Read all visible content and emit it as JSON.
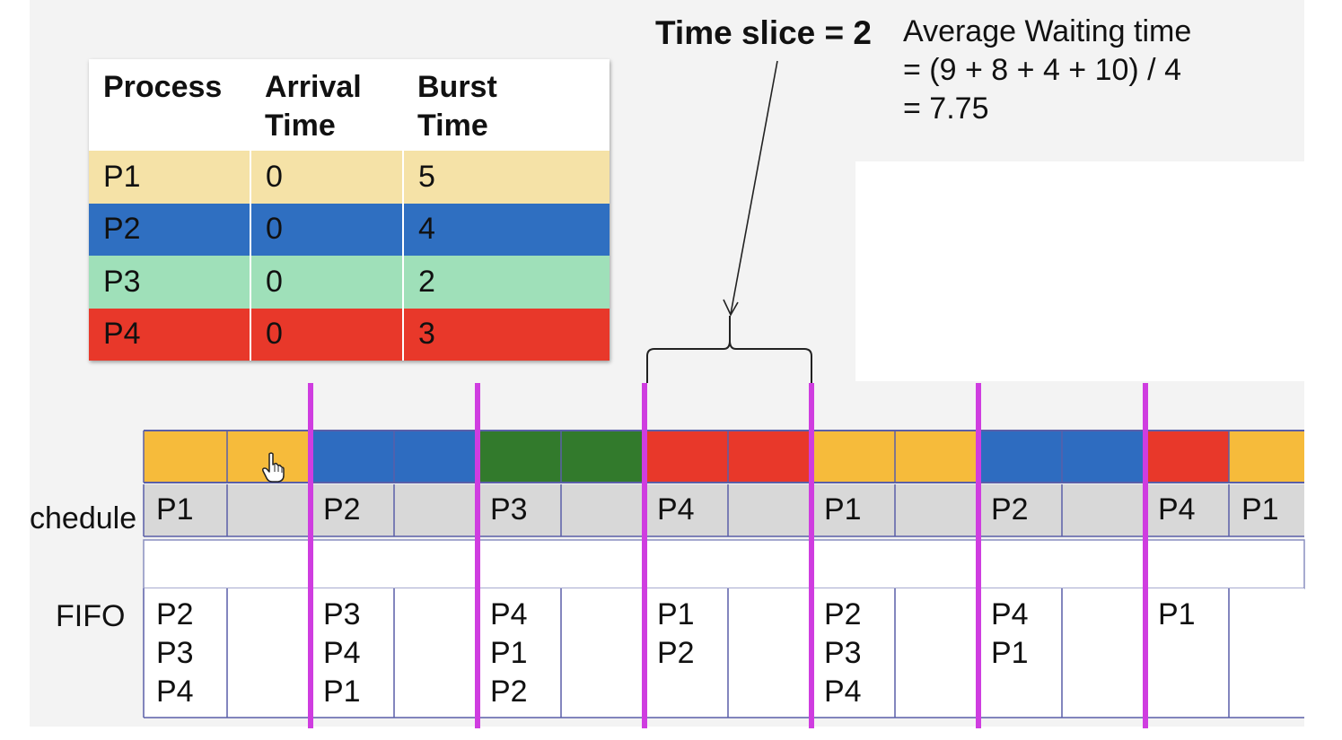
{
  "process_table": {
    "headers": [
      {
        "line1": "Process",
        "line2": ""
      },
      {
        "line1": "Arrival",
        "line2": "Time"
      },
      {
        "line1": "Burst",
        "line2": "Time"
      }
    ],
    "rows": [
      {
        "process": "P1",
        "arrival": "0",
        "burst": "5",
        "color": "#f5e2a7"
      },
      {
        "process": "P2",
        "arrival": "0",
        "burst": "4",
        "color": "#2f6fc1"
      },
      {
        "process": "P3",
        "arrival": "0",
        "burst": "2",
        "color": "#9fe0b9"
      },
      {
        "process": "P4",
        "arrival": "0",
        "burst": "3",
        "color": "#e8382a"
      }
    ]
  },
  "time_slice_label": "Time slice = 2",
  "average_waiting": {
    "line1": "Average Waiting time",
    "line2": "= (9 + 8 + 4 + 10) / 4",
    "line3": "= 7.75"
  },
  "timeline": {
    "schedule_label": "chedule",
    "fifo_label": "FIFO",
    "colors": {
      "P1": "#f6bb3b",
      "P2": "#2e6cc0",
      "P3": "#327a2c",
      "P4": "#e8382a",
      "schedule_row": "#d8d8d8",
      "divider": "#cf3de0",
      "grid": "#5a5fa8"
    },
    "units": [
      "P1",
      "P1",
      "P2",
      "P2",
      "P3",
      "P3",
      "P4",
      "P4",
      "P1",
      "P1",
      "P2",
      "P2",
      "P4",
      "P1"
    ],
    "schedule": [
      {
        "label": "P1",
        "units": 2
      },
      {
        "label": "P2",
        "units": 2
      },
      {
        "label": "P3",
        "units": 2
      },
      {
        "label": "P4",
        "units": 2
      },
      {
        "label": "P1",
        "units": 2
      },
      {
        "label": "P2",
        "units": 2
      },
      {
        "label": "P4",
        "units": 1
      },
      {
        "label": "P1",
        "units": 1
      }
    ],
    "fifo": [
      [
        "P2",
        "P3",
        "P4"
      ],
      [
        "P3",
        "P4",
        "P1"
      ],
      [
        "P4",
        "P1",
        "P2"
      ],
      [
        "P1",
        "P2"
      ],
      [
        "P2",
        "P3",
        "P4"
      ],
      [
        "P4",
        "P1"
      ],
      [
        "P1"
      ]
    ]
  },
  "cursor_icon": "hand-pointer-icon"
}
